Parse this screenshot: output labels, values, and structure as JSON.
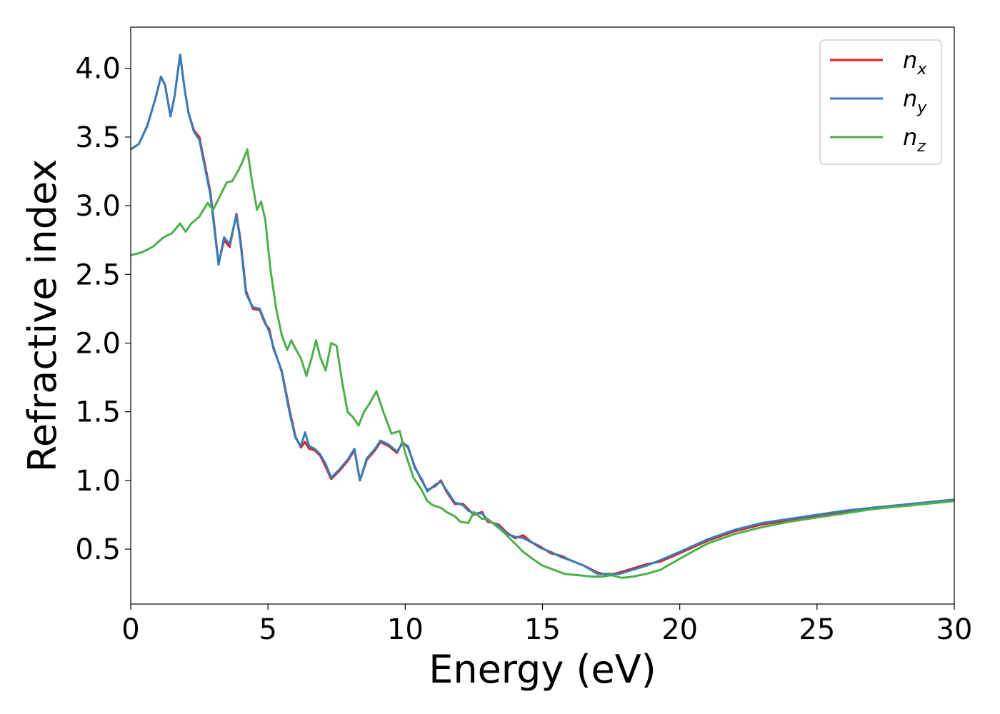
{
  "chart_data": {
    "type": "line",
    "xlabel": "Energy (eV)",
    "ylabel": "Refractive index",
    "xlim": [
      0,
      30
    ],
    "ylim": [
      0.1,
      4.3
    ],
    "xticks": [
      0,
      5,
      10,
      15,
      20,
      25,
      30
    ],
    "xtick_labels": [
      "0",
      "5",
      "10",
      "15",
      "20",
      "25",
      "30"
    ],
    "yticks": [
      0.5,
      1.0,
      1.5,
      2.0,
      2.5,
      3.0,
      3.5,
      4.0
    ],
    "ytick_labels": [
      "0.5",
      "1.0",
      "1.5",
      "2.0",
      "2.5",
      "3.0",
      "3.5",
      "4.0"
    ],
    "grid": false,
    "legend_position": "top-right",
    "series": [
      {
        "name": "n_x",
        "label_base": "n",
        "label_sub": "x",
        "color": "#e41a1c",
        "x": [
          0,
          0.3,
          0.6,
          0.9,
          1.1,
          1.25,
          1.45,
          1.6,
          1.8,
          1.95,
          2.1,
          2.3,
          2.5,
          2.7,
          2.9,
          3.05,
          3.2,
          3.4,
          3.6,
          3.85,
          4.0,
          4.2,
          4.45,
          4.7,
          4.9,
          5.05,
          5.2,
          5.5,
          5.8,
          6.0,
          6.2,
          6.35,
          6.5,
          6.7,
          6.9,
          7.1,
          7.3,
          7.6,
          7.9,
          8.15,
          8.35,
          8.6,
          8.9,
          9.1,
          9.4,
          9.7,
          9.9,
          10.1,
          10.35,
          10.6,
          10.8,
          11.1,
          11.3,
          11.5,
          11.8,
          12.1,
          12.3,
          12.5,
          12.8,
          13.0,
          13.4,
          13.7,
          14.0,
          14.3,
          14.6,
          14.9,
          15.3,
          15.7,
          16.0,
          16.5,
          17.0,
          17.4,
          17.8,
          18.3,
          18.8,
          19.3,
          20.0,
          21.0,
          22.0,
          23.0,
          24.0,
          25.0,
          26.0,
          27.0,
          28.0,
          29.0,
          30.0
        ],
        "y": [
          3.41,
          3.45,
          3.58,
          3.78,
          3.94,
          3.88,
          3.65,
          3.8,
          4.1,
          3.87,
          3.68,
          3.55,
          3.5,
          3.3,
          3.1,
          2.85,
          2.58,
          2.75,
          2.7,
          2.94,
          2.75,
          2.38,
          2.25,
          2.24,
          2.14,
          2.1,
          1.96,
          1.8,
          1.5,
          1.32,
          1.24,
          1.28,
          1.23,
          1.22,
          1.18,
          1.1,
          1.01,
          1.07,
          1.14,
          1.22,
          1.0,
          1.15,
          1.22,
          1.28,
          1.25,
          1.2,
          1.28,
          1.24,
          1.1,
          1.0,
          0.93,
          0.96,
          1.0,
          0.92,
          0.83,
          0.83,
          0.79,
          0.75,
          0.77,
          0.7,
          0.68,
          0.62,
          0.58,
          0.6,
          0.55,
          0.52,
          0.47,
          0.45,
          0.42,
          0.38,
          0.33,
          0.31,
          0.33,
          0.36,
          0.39,
          0.41,
          0.47,
          0.56,
          0.63,
          0.68,
          0.71,
          0.74,
          0.77,
          0.8,
          0.82,
          0.84,
          0.86
        ]
      },
      {
        "name": "n_y",
        "label_base": "n",
        "label_sub": "y",
        "color": "#377eb8",
        "x": [
          0,
          0.3,
          0.6,
          0.9,
          1.1,
          1.25,
          1.45,
          1.6,
          1.8,
          1.95,
          2.1,
          2.3,
          2.5,
          2.7,
          2.9,
          3.05,
          3.2,
          3.4,
          3.6,
          3.85,
          4.0,
          4.2,
          4.45,
          4.7,
          4.9,
          5.05,
          5.2,
          5.5,
          5.8,
          6.0,
          6.2,
          6.35,
          6.5,
          6.7,
          6.9,
          7.1,
          7.3,
          7.6,
          7.9,
          8.15,
          8.35,
          8.6,
          8.9,
          9.1,
          9.4,
          9.7,
          9.9,
          10.1,
          10.35,
          10.6,
          10.8,
          11.1,
          11.3,
          11.5,
          11.8,
          12.1,
          12.3,
          12.5,
          12.8,
          13.0,
          13.4,
          13.7,
          14.0,
          14.3,
          14.6,
          14.9,
          15.3,
          15.7,
          16.0,
          16.5,
          17.0,
          17.4,
          17.8,
          18.3,
          18.8,
          19.3,
          20.0,
          21.0,
          22.0,
          23.0,
          24.0,
          25.0,
          26.0,
          27.0,
          28.0,
          29.0,
          30.0
        ],
        "y": [
          3.41,
          3.45,
          3.58,
          3.78,
          3.94,
          3.88,
          3.65,
          3.8,
          4.1,
          3.87,
          3.68,
          3.54,
          3.48,
          3.28,
          3.08,
          2.83,
          2.57,
          2.77,
          2.72,
          2.93,
          2.73,
          2.36,
          2.26,
          2.25,
          2.15,
          2.08,
          1.97,
          1.79,
          1.48,
          1.31,
          1.25,
          1.35,
          1.25,
          1.23,
          1.19,
          1.12,
          1.02,
          1.08,
          1.15,
          1.23,
          1.0,
          1.16,
          1.23,
          1.29,
          1.26,
          1.21,
          1.27,
          1.25,
          1.09,
          1.01,
          0.92,
          0.97,
          0.99,
          0.93,
          0.84,
          0.82,
          0.78,
          0.76,
          0.76,
          0.71,
          0.67,
          0.61,
          0.59,
          0.58,
          0.55,
          0.51,
          0.48,
          0.44,
          0.42,
          0.38,
          0.32,
          0.32,
          0.32,
          0.35,
          0.38,
          0.42,
          0.48,
          0.57,
          0.64,
          0.69,
          0.72,
          0.75,
          0.78,
          0.8,
          0.82,
          0.84,
          0.86
        ]
      },
      {
        "name": "n_z",
        "label_base": "n",
        "label_sub": "z",
        "color": "#4daf4a",
        "x": [
          0,
          0.4,
          0.8,
          1.2,
          1.5,
          1.8,
          2.0,
          2.2,
          2.5,
          2.8,
          3.0,
          3.2,
          3.5,
          3.7,
          3.9,
          4.05,
          4.25,
          4.4,
          4.6,
          4.75,
          4.9,
          5.1,
          5.3,
          5.5,
          5.7,
          5.85,
          6.0,
          6.2,
          6.4,
          6.6,
          6.75,
          6.9,
          7.1,
          7.3,
          7.5,
          7.7,
          7.9,
          8.1,
          8.3,
          8.5,
          8.7,
          8.95,
          9.2,
          9.5,
          9.8,
          10.0,
          10.3,
          10.6,
          10.8,
          11.0,
          11.3,
          11.5,
          11.8,
          12.0,
          12.3,
          12.5,
          12.8,
          13.0,
          13.3,
          13.6,
          13.9,
          14.3,
          14.7,
          15.0,
          15.4,
          15.8,
          16.3,
          16.8,
          17.2,
          17.5,
          17.9,
          18.3,
          18.8,
          19.3,
          20.0,
          21.0,
          22.0,
          23.0,
          24.0,
          25.0,
          26.0,
          27.0,
          28.0,
          29.0,
          30.0
        ],
        "y": [
          2.64,
          2.66,
          2.7,
          2.77,
          2.8,
          2.87,
          2.81,
          2.87,
          2.92,
          3.02,
          2.97,
          3.05,
          3.17,
          3.18,
          3.25,
          3.31,
          3.41,
          3.2,
          2.97,
          3.03,
          2.9,
          2.52,
          2.25,
          2.06,
          1.95,
          2.02,
          1.96,
          1.89,
          1.76,
          1.9,
          2.02,
          1.9,
          1.8,
          2.0,
          1.98,
          1.72,
          1.5,
          1.46,
          1.4,
          1.5,
          1.56,
          1.65,
          1.5,
          1.34,
          1.36,
          1.2,
          1.02,
          0.93,
          0.85,
          0.82,
          0.8,
          0.77,
          0.74,
          0.7,
          0.69,
          0.77,
          0.72,
          0.72,
          0.67,
          0.62,
          0.56,
          0.48,
          0.42,
          0.38,
          0.35,
          0.32,
          0.31,
          0.3,
          0.3,
          0.31,
          0.29,
          0.3,
          0.32,
          0.35,
          0.43,
          0.54,
          0.61,
          0.66,
          0.7,
          0.73,
          0.76,
          0.79,
          0.81,
          0.83,
          0.85
        ]
      }
    ]
  }
}
